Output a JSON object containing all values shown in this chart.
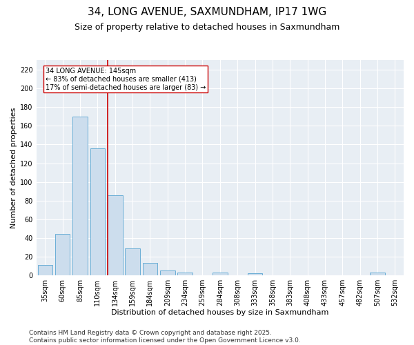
{
  "title1": "34, LONG AVENUE, SAXMUNDHAM, IP17 1WG",
  "title2": "Size of property relative to detached houses in Saxmundham",
  "xlabel": "Distribution of detached houses by size in Saxmundham",
  "ylabel": "Number of detached properties",
  "categories": [
    "35sqm",
    "60sqm",
    "85sqm",
    "110sqm",
    "134sqm",
    "159sqm",
    "184sqm",
    "209sqm",
    "234sqm",
    "259sqm",
    "284sqm",
    "308sqm",
    "333sqm",
    "358sqm",
    "383sqm",
    "408sqm",
    "433sqm",
    "457sqm",
    "482sqm",
    "507sqm",
    "532sqm"
  ],
  "values": [
    11,
    44,
    170,
    136,
    86,
    29,
    13,
    5,
    3,
    0,
    3,
    0,
    2,
    0,
    0,
    0,
    0,
    0,
    0,
    3,
    0
  ],
  "bar_color": "#ccdded",
  "bar_edge_color": "#6aaed6",
  "vline_color": "#cc0000",
  "vline_x_idx": 4,
  "annotation_title": "34 LONG AVENUE: 145sqm",
  "annotation_line1": "← 83% of detached houses are smaller (413)",
  "annotation_line2": "17% of semi-detached houses are larger (83) →",
  "annotation_box_facecolor": "#ffffff",
  "annotation_box_edgecolor": "#cc0000",
  "ylim": [
    0,
    230
  ],
  "yticks": [
    0,
    20,
    40,
    60,
    80,
    100,
    120,
    140,
    160,
    180,
    200,
    220
  ],
  "footer1": "Contains HM Land Registry data © Crown copyright and database right 2025.",
  "footer2": "Contains public sector information licensed under the Open Government Licence v3.0.",
  "bg_color": "#ffffff",
  "plot_bg_color": "#e8eef4",
  "grid_color": "#ffffff",
  "title1_fontsize": 11,
  "title2_fontsize": 9,
  "axis_label_fontsize": 8,
  "tick_fontsize": 7,
  "annotation_fontsize": 7,
  "footer_fontsize": 6.5
}
